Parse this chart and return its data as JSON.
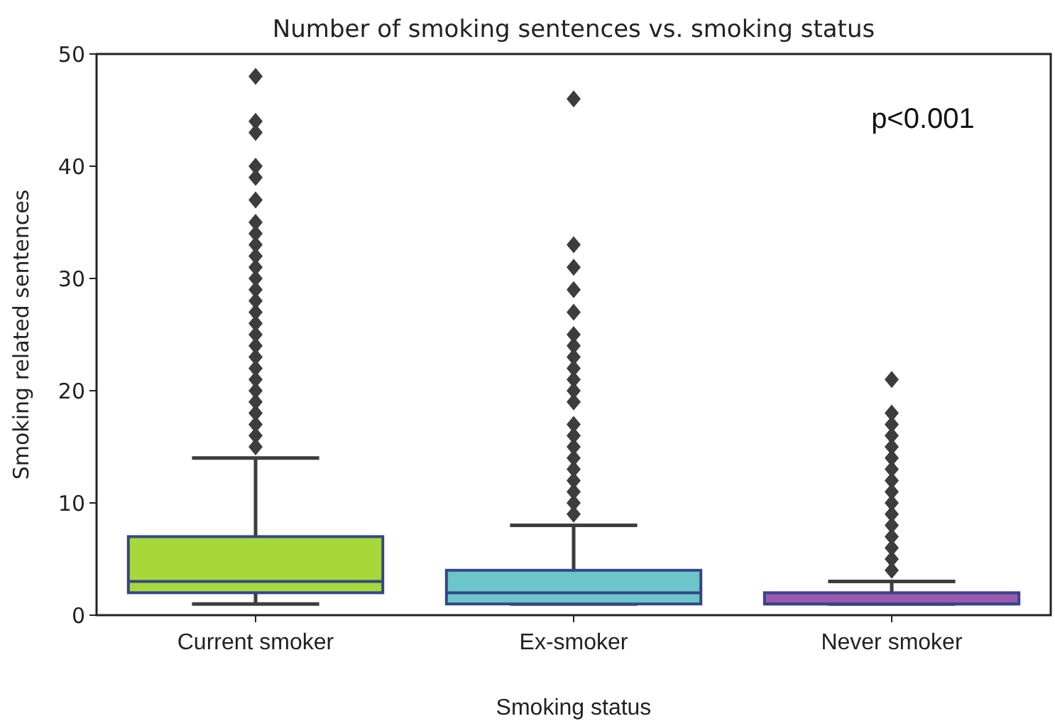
{
  "chart_data": {
    "type": "box",
    "title": "Number of smoking sentences vs. smoking status",
    "xlabel": "Smoking status",
    "ylabel": "Smoking related sentences",
    "categories": [
      "Current smoker",
      "Ex-smoker",
      "Never smoker"
    ],
    "colors": [
      "#a6d83a",
      "#6cc5c8",
      "#9b59b0"
    ],
    "boxes": [
      {
        "low": 1,
        "q1": 2,
        "median": 3,
        "q3": 7,
        "high": 14,
        "outliers": [
          15,
          16,
          17,
          18,
          19,
          20,
          21,
          22,
          23,
          24,
          25,
          26,
          27,
          28,
          29,
          30,
          31,
          32,
          33,
          34,
          35,
          37,
          39,
          40,
          43,
          44,
          48
        ]
      },
      {
        "low": 1,
        "q1": 1,
        "median": 2,
        "q3": 4,
        "high": 8,
        "outliers": [
          9,
          10,
          11,
          12,
          13,
          14,
          15,
          16,
          17,
          19,
          20,
          21,
          22,
          23,
          24,
          25,
          27,
          29,
          31,
          33,
          46
        ]
      },
      {
        "low": 1,
        "q1": 1,
        "median": 1,
        "q3": 2,
        "high": 3,
        "outliers": [
          4,
          5,
          6,
          7,
          8,
          9,
          10,
          11,
          12,
          13,
          14,
          15,
          16,
          17,
          18,
          21
        ]
      }
    ],
    "ylim": [
      0,
      50
    ],
    "yticks": [
      0,
      10,
      20,
      30,
      40,
      50
    ],
    "grid": false,
    "annotations": [
      "p<0.001"
    ]
  }
}
